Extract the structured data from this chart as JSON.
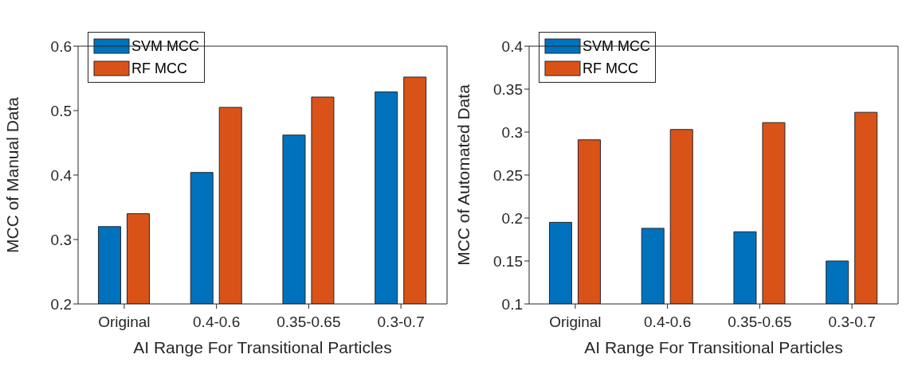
{
  "chart_data": [
    {
      "type": "bar",
      "xlabel": "AI Range For Transitional Particles",
      "ylabel": "MCC of Manual Data",
      "categories": [
        "Original",
        "0.4-0.6",
        "0.35-0.65",
        "0.3-0.7"
      ],
      "series": [
        {
          "name": "SVM MCC",
          "color": "#0072bd",
          "values": [
            0.32,
            0.404,
            0.462,
            0.529
          ]
        },
        {
          "name": "RF MCC",
          "color": "#d95319",
          "values": [
            0.34,
            0.505,
            0.521,
            0.552
          ]
        }
      ],
      "ylim": [
        0.2,
        0.6
      ],
      "yticks": [
        0.2,
        0.3,
        0.4,
        0.5,
        0.6
      ],
      "grid": false,
      "legend": "top left"
    },
    {
      "type": "bar",
      "xlabel": "AI Range For Transitional Particles",
      "ylabel": "MCC of Automated Data",
      "categories": [
        "Original",
        "0.4-0.6",
        "0.35-0.65",
        "0.3-0.7"
      ],
      "series": [
        {
          "name": "SVM MCC",
          "color": "#0072bd",
          "values": [
            0.195,
            0.188,
            0.184,
            0.15
          ]
        },
        {
          "name": "RF MCC",
          "color": "#d95319",
          "values": [
            0.291,
            0.303,
            0.311,
            0.323
          ]
        }
      ],
      "ylim": [
        0.1,
        0.4
      ],
      "yticks": [
        0.1,
        0.15,
        0.2,
        0.25,
        0.3,
        0.35,
        0.4
      ],
      "grid": false,
      "legend": "top left"
    }
  ]
}
